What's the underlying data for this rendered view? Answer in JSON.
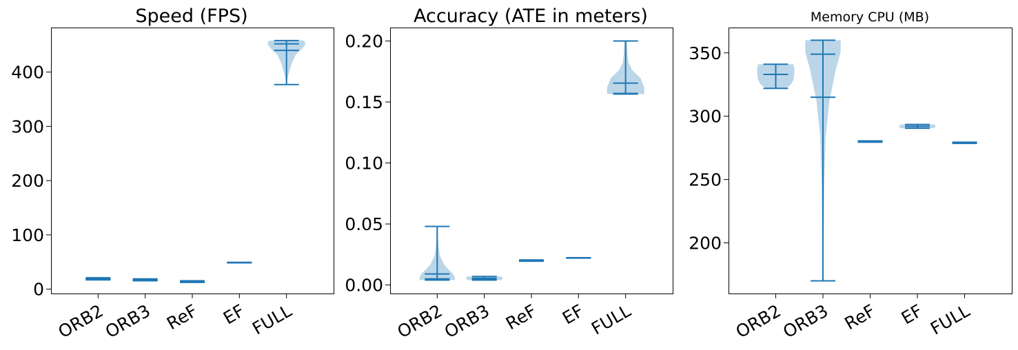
{
  "chart_data": [
    {
      "type": "violin",
      "title": "Speed (FPS)",
      "categories": [
        "ORB2",
        "ORB3",
        "ReF",
        "EF",
        "FULL"
      ],
      "ylim": [
        -8,
        482
      ],
      "yticks": [
        0,
        100,
        200,
        300,
        400
      ],
      "ytick_labels": [
        "0",
        "100",
        "200",
        "300",
        "400"
      ],
      "series": [
        {
          "min": 17,
          "mean": 19,
          "median": 18.5,
          "max": 21
        },
        {
          "min": 15.5,
          "mean": 17,
          "median": 16.5,
          "max": 19
        },
        {
          "min": 12.5,
          "mean": 14,
          "median": 13.5,
          "max": 15.5
        },
        {
          "min": 48.5,
          "mean": 49,
          "median": 49,
          "max": 49.5
        },
        {
          "min": 377,
          "mean": 440,
          "median": 452,
          "max": 458
        }
      ]
    },
    {
      "type": "violin",
      "title": "Accuracy (ATE in meters)",
      "categories": [
        "ORB2",
        "ORB3",
        "ReF",
        "EF",
        "FULL"
      ],
      "ylim": [
        -0.007,
        0.211
      ],
      "yticks": [
        0.0,
        0.05,
        0.1,
        0.15,
        0.2
      ],
      "ytick_labels": [
        "0.00",
        "0.05",
        "0.10",
        "0.15",
        "0.20"
      ],
      "series": [
        {
          "min": 0.004,
          "mean": 0.009,
          "median": 0.005,
          "max": 0.048
        },
        {
          "min": 0.004,
          "mean": 0.0055,
          "median": 0.005,
          "max": 0.007
        },
        {
          "min": 0.0195,
          "mean": 0.02,
          "median": 0.02,
          "max": 0.0205
        },
        {
          "min": 0.022,
          "mean": 0.0222,
          "median": 0.0222,
          "max": 0.0224
        },
        {
          "min": 0.1565,
          "mean": 0.1655,
          "median": 0.157,
          "max": 0.2
        }
      ]
    },
    {
      "type": "violin",
      "title": "Memory CPU (MB)",
      "categories": [
        "ORB2",
        "ORB3",
        "ReF",
        "EF",
        "FULL"
      ],
      "ylim": [
        160,
        370
      ],
      "yticks": [
        200,
        250,
        300,
        350
      ],
      "ytick_labels": [
        "200",
        "250",
        "300",
        "350"
      ],
      "series": [
        {
          "min": 322,
          "mean": 333,
          "median": 333,
          "max": 341
        },
        {
          "min": 170,
          "mean": 315,
          "median": 349,
          "max": 360
        },
        {
          "min": 279.5,
          "mean": 280,
          "median": 280,
          "max": 280.5
        },
        {
          "min": 290.5,
          "mean": 292,
          "median": 292,
          "max": 293.5
        },
        {
          "min": 278.5,
          "mean": 279,
          "median": 279,
          "max": 279.5
        }
      ]
    }
  ],
  "colors": {
    "line": "#1f77b4",
    "body": "#1f77b4",
    "body_alpha": 0.3
  }
}
